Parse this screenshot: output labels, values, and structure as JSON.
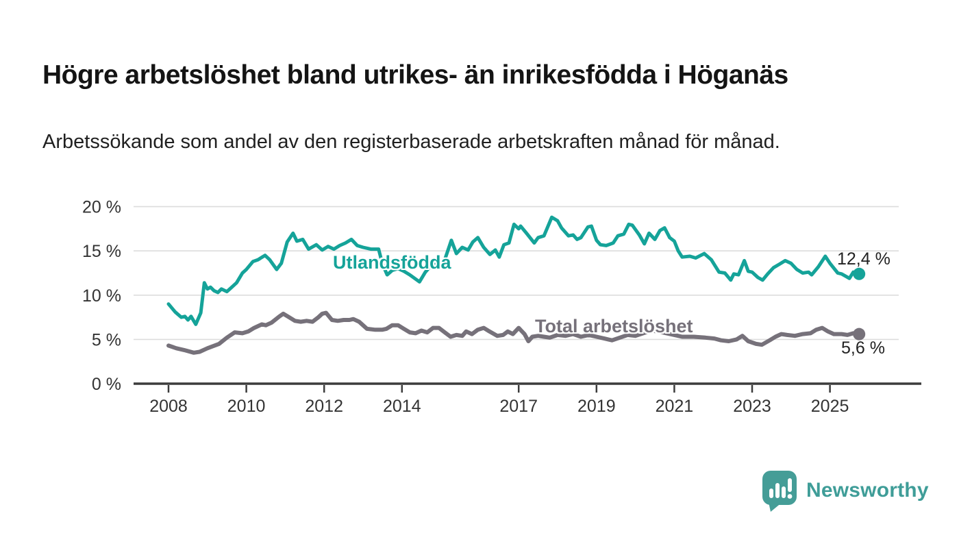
{
  "header": {
    "title": "Högre arbetslöshet bland utrikes- än inrikesfödda i Höganäs",
    "subtitle": "Arbetssökande som andel av den registerbaserade arbetskraften månad för månad."
  },
  "footer": {
    "brand": "Newsworthy"
  },
  "colors": {
    "foreign_born_line": "#15a399",
    "total_line": "#76717a",
    "gridline": "#dcdcdc",
    "axis_line": "#3c3c3c",
    "axis_text": "#333333",
    "title_text": "#141414",
    "brand_teal": "#459d97"
  },
  "chart_data": {
    "type": "line",
    "title": "Högre arbetslöshet bland utrikes- än inrikesfödda i Höganäs",
    "subtitle": "Arbetssökande som andel av den registerbaserade arbetskraften månad för månad.",
    "xlabel": "",
    "ylabel": "%",
    "grid": "horizontal",
    "x_range": [
      2007.6,
      2026.3
    ],
    "ylim": [
      0,
      20
    ],
    "x_ticks": [
      {
        "year": 2008,
        "label": "2008"
      },
      {
        "year": 2010,
        "label": "2010"
      },
      {
        "year": 2012,
        "label": "2012"
      },
      {
        "year": 2014,
        "label": "2014"
      },
      {
        "year": 2017,
        "label": "2017"
      },
      {
        "year": 2019,
        "label": "2019"
      },
      {
        "year": 2021,
        "label": "2021"
      },
      {
        "year": 2023,
        "label": "2023"
      },
      {
        "year": 2025,
        "label": "2025"
      }
    ],
    "y_ticks": [
      {
        "value": 0,
        "label": "0 %"
      },
      {
        "value": 5,
        "label": "5 %"
      },
      {
        "value": 10,
        "label": "10 %"
      },
      {
        "value": 15,
        "label": "15 %"
      },
      {
        "value": 20,
        "label": "20 %"
      }
    ],
    "series": [
      {
        "name": "Utlandsfödda",
        "color": "#15a399",
        "end_label": "12,4 %",
        "end_value": 12.4,
        "points": [
          [
            2008.0,
            9.0
          ],
          [
            2008.17,
            8.1
          ],
          [
            2008.33,
            7.5
          ],
          [
            2008.42,
            7.6
          ],
          [
            2008.5,
            7.2
          ],
          [
            2008.58,
            7.6
          ],
          [
            2008.7,
            6.7
          ],
          [
            2008.83,
            8.0
          ],
          [
            2008.92,
            11.4
          ],
          [
            2009.0,
            10.7
          ],
          [
            2009.08,
            10.9
          ],
          [
            2009.17,
            10.5
          ],
          [
            2009.27,
            10.3
          ],
          [
            2009.36,
            10.7
          ],
          [
            2009.5,
            10.4
          ],
          [
            2009.6,
            10.8
          ],
          [
            2009.75,
            11.4
          ],
          [
            2009.9,
            12.5
          ],
          [
            2010.0,
            12.9
          ],
          [
            2010.17,
            13.8
          ],
          [
            2010.3,
            14.0
          ],
          [
            2010.48,
            14.5
          ],
          [
            2010.6,
            14.0
          ],
          [
            2010.78,
            12.9
          ],
          [
            2010.9,
            13.6
          ],
          [
            2011.05,
            16.0
          ],
          [
            2011.2,
            17.0
          ],
          [
            2011.3,
            16.1
          ],
          [
            2011.45,
            16.3
          ],
          [
            2011.6,
            15.2
          ],
          [
            2011.8,
            15.7
          ],
          [
            2011.95,
            15.1
          ],
          [
            2012.1,
            15.5
          ],
          [
            2012.25,
            15.2
          ],
          [
            2012.4,
            15.6
          ],
          [
            2012.55,
            15.9
          ],
          [
            2012.7,
            16.3
          ],
          [
            2012.85,
            15.6
          ],
          [
            2013.0,
            15.4
          ],
          [
            2013.2,
            15.2
          ],
          [
            2013.4,
            15.2
          ],
          [
            2013.5,
            13.5
          ],
          [
            2013.62,
            12.3
          ],
          [
            2013.75,
            12.8
          ],
          [
            2013.9,
            13.0
          ],
          [
            2014.05,
            12.7
          ],
          [
            2014.2,
            12.3
          ],
          [
            2014.45,
            11.5
          ],
          [
            2014.6,
            12.6
          ],
          [
            2014.8,
            13.6
          ],
          [
            2014.95,
            13.3
          ],
          [
            2015.1,
            14.0
          ],
          [
            2015.27,
            16.2
          ],
          [
            2015.4,
            14.7
          ],
          [
            2015.55,
            15.4
          ],
          [
            2015.7,
            15.1
          ],
          [
            2015.82,
            16.0
          ],
          [
            2015.95,
            16.5
          ],
          [
            2016.1,
            15.4
          ],
          [
            2016.26,
            14.6
          ],
          [
            2016.4,
            15.1
          ],
          [
            2016.5,
            14.3
          ],
          [
            2016.62,
            15.7
          ],
          [
            2016.75,
            15.9
          ],
          [
            2016.88,
            18.0
          ],
          [
            2017.0,
            17.5
          ],
          [
            2017.05,
            17.8
          ],
          [
            2017.2,
            17.0
          ],
          [
            2017.4,
            15.9
          ],
          [
            2017.5,
            16.5
          ],
          [
            2017.65,
            16.7
          ],
          [
            2017.85,
            18.8
          ],
          [
            2018.0,
            18.4
          ],
          [
            2018.1,
            17.6
          ],
          [
            2018.28,
            16.7
          ],
          [
            2018.4,
            16.8
          ],
          [
            2018.5,
            16.3
          ],
          [
            2018.6,
            16.5
          ],
          [
            2018.78,
            17.7
          ],
          [
            2018.87,
            17.8
          ],
          [
            2019.0,
            16.2
          ],
          [
            2019.1,
            15.7
          ],
          [
            2019.25,
            15.6
          ],
          [
            2019.43,
            15.9
          ],
          [
            2019.55,
            16.7
          ],
          [
            2019.7,
            16.9
          ],
          [
            2019.83,
            18.0
          ],
          [
            2019.92,
            17.9
          ],
          [
            2020.1,
            16.8
          ],
          [
            2020.23,
            15.8
          ],
          [
            2020.35,
            17.0
          ],
          [
            2020.5,
            16.3
          ],
          [
            2020.63,
            17.3
          ],
          [
            2020.75,
            17.6
          ],
          [
            2020.88,
            16.5
          ],
          [
            2021.0,
            16.1
          ],
          [
            2021.1,
            15.0
          ],
          [
            2021.2,
            14.3
          ],
          [
            2021.4,
            14.4
          ],
          [
            2021.55,
            14.2
          ],
          [
            2021.77,
            14.7
          ],
          [
            2021.95,
            14.0
          ],
          [
            2022.15,
            12.6
          ],
          [
            2022.3,
            12.5
          ],
          [
            2022.45,
            11.7
          ],
          [
            2022.53,
            12.4
          ],
          [
            2022.65,
            12.3
          ],
          [
            2022.8,
            13.9
          ],
          [
            2022.9,
            12.7
          ],
          [
            2023.0,
            12.6
          ],
          [
            2023.15,
            12.0
          ],
          [
            2023.27,
            11.7
          ],
          [
            2023.4,
            12.4
          ],
          [
            2023.55,
            13.1
          ],
          [
            2023.7,
            13.5
          ],
          [
            2023.85,
            13.9
          ],
          [
            2024.0,
            13.6
          ],
          [
            2024.15,
            12.9
          ],
          [
            2024.3,
            12.5
          ],
          [
            2024.45,
            12.6
          ],
          [
            2024.53,
            12.3
          ],
          [
            2024.7,
            13.2
          ],
          [
            2024.88,
            14.4
          ],
          [
            2025.0,
            13.6
          ],
          [
            2025.2,
            12.5
          ],
          [
            2025.3,
            12.4
          ],
          [
            2025.42,
            12.1
          ],
          [
            2025.5,
            11.9
          ],
          [
            2025.6,
            12.6
          ],
          [
            2025.75,
            12.4
          ]
        ]
      },
      {
        "name": "Total arbetslöshet",
        "color": "#76717a",
        "end_label": "5,6 %",
        "end_value": 5.6,
        "points": [
          [
            2008.0,
            4.3
          ],
          [
            2008.2,
            4.0
          ],
          [
            2008.4,
            3.8
          ],
          [
            2008.65,
            3.5
          ],
          [
            2008.8,
            3.6
          ],
          [
            2009.0,
            4.0
          ],
          [
            2009.3,
            4.5
          ],
          [
            2009.5,
            5.2
          ],
          [
            2009.7,
            5.8
          ],
          [
            2009.9,
            5.7
          ],
          [
            2010.05,
            5.9
          ],
          [
            2010.2,
            6.3
          ],
          [
            2010.4,
            6.7
          ],
          [
            2010.5,
            6.6
          ],
          [
            2010.65,
            6.9
          ],
          [
            2010.85,
            7.6
          ],
          [
            2010.95,
            7.9
          ],
          [
            2011.1,
            7.5
          ],
          [
            2011.25,
            7.1
          ],
          [
            2011.4,
            7.0
          ],
          [
            2011.55,
            7.1
          ],
          [
            2011.7,
            7.0
          ],
          [
            2011.85,
            7.5
          ],
          [
            2011.95,
            7.9
          ],
          [
            2012.05,
            8.0
          ],
          [
            2012.2,
            7.2
          ],
          [
            2012.35,
            7.1
          ],
          [
            2012.5,
            7.2
          ],
          [
            2012.65,
            7.2
          ],
          [
            2012.75,
            7.3
          ],
          [
            2012.9,
            7.0
          ],
          [
            2013.1,
            6.2
          ],
          [
            2013.3,
            6.1
          ],
          [
            2013.5,
            6.1
          ],
          [
            2013.6,
            6.2
          ],
          [
            2013.75,
            6.6
          ],
          [
            2013.9,
            6.6
          ],
          [
            2014.05,
            6.2
          ],
          [
            2014.2,
            5.8
          ],
          [
            2014.35,
            5.7
          ],
          [
            2014.5,
            6.0
          ],
          [
            2014.65,
            5.8
          ],
          [
            2014.8,
            6.3
          ],
          [
            2014.95,
            6.3
          ],
          [
            2015.1,
            5.8
          ],
          [
            2015.25,
            5.3
          ],
          [
            2015.4,
            5.5
          ],
          [
            2015.55,
            5.4
          ],
          [
            2015.65,
            5.9
          ],
          [
            2015.8,
            5.6
          ],
          [
            2015.95,
            6.1
          ],
          [
            2016.1,
            6.3
          ],
          [
            2016.25,
            5.9
          ],
          [
            2016.45,
            5.4
          ],
          [
            2016.6,
            5.5
          ],
          [
            2016.72,
            5.9
          ],
          [
            2016.85,
            5.6
          ],
          [
            2017.0,
            6.3
          ],
          [
            2017.15,
            5.6
          ],
          [
            2017.25,
            4.8
          ],
          [
            2017.35,
            5.3
          ],
          [
            2017.5,
            5.4
          ],
          [
            2017.65,
            5.3
          ],
          [
            2017.8,
            5.2
          ],
          [
            2018.0,
            5.5
          ],
          [
            2018.2,
            5.4
          ],
          [
            2018.4,
            5.6
          ],
          [
            2018.6,
            5.3
          ],
          [
            2018.8,
            5.5
          ],
          [
            2019.0,
            5.3
          ],
          [
            2019.2,
            5.1
          ],
          [
            2019.4,
            4.9
          ],
          [
            2019.6,
            5.2
          ],
          [
            2019.8,
            5.5
          ],
          [
            2020.0,
            5.4
          ],
          [
            2020.2,
            5.7
          ],
          [
            2020.4,
            6.0
          ],
          [
            2020.6,
            5.9
          ],
          [
            2020.8,
            5.7
          ],
          [
            2021.0,
            5.5
          ],
          [
            2021.2,
            5.3
          ],
          [
            2021.5,
            5.3
          ],
          [
            2021.8,
            5.2
          ],
          [
            2022.03,
            5.1
          ],
          [
            2022.2,
            4.9
          ],
          [
            2022.4,
            4.8
          ],
          [
            2022.6,
            5.0
          ],
          [
            2022.75,
            5.4
          ],
          [
            2022.9,
            4.8
          ],
          [
            2023.1,
            4.5
          ],
          [
            2023.25,
            4.4
          ],
          [
            2023.45,
            4.9
          ],
          [
            2023.6,
            5.3
          ],
          [
            2023.75,
            5.6
          ],
          [
            2023.9,
            5.5
          ],
          [
            2024.1,
            5.4
          ],
          [
            2024.3,
            5.6
          ],
          [
            2024.5,
            5.7
          ],
          [
            2024.65,
            6.1
          ],
          [
            2024.8,
            6.3
          ],
          [
            2024.95,
            5.9
          ],
          [
            2025.1,
            5.6
          ],
          [
            2025.3,
            5.6
          ],
          [
            2025.45,
            5.5
          ],
          [
            2025.6,
            5.7
          ],
          [
            2025.75,
            5.6
          ]
        ]
      }
    ],
    "legend_position": "inline-labels"
  }
}
